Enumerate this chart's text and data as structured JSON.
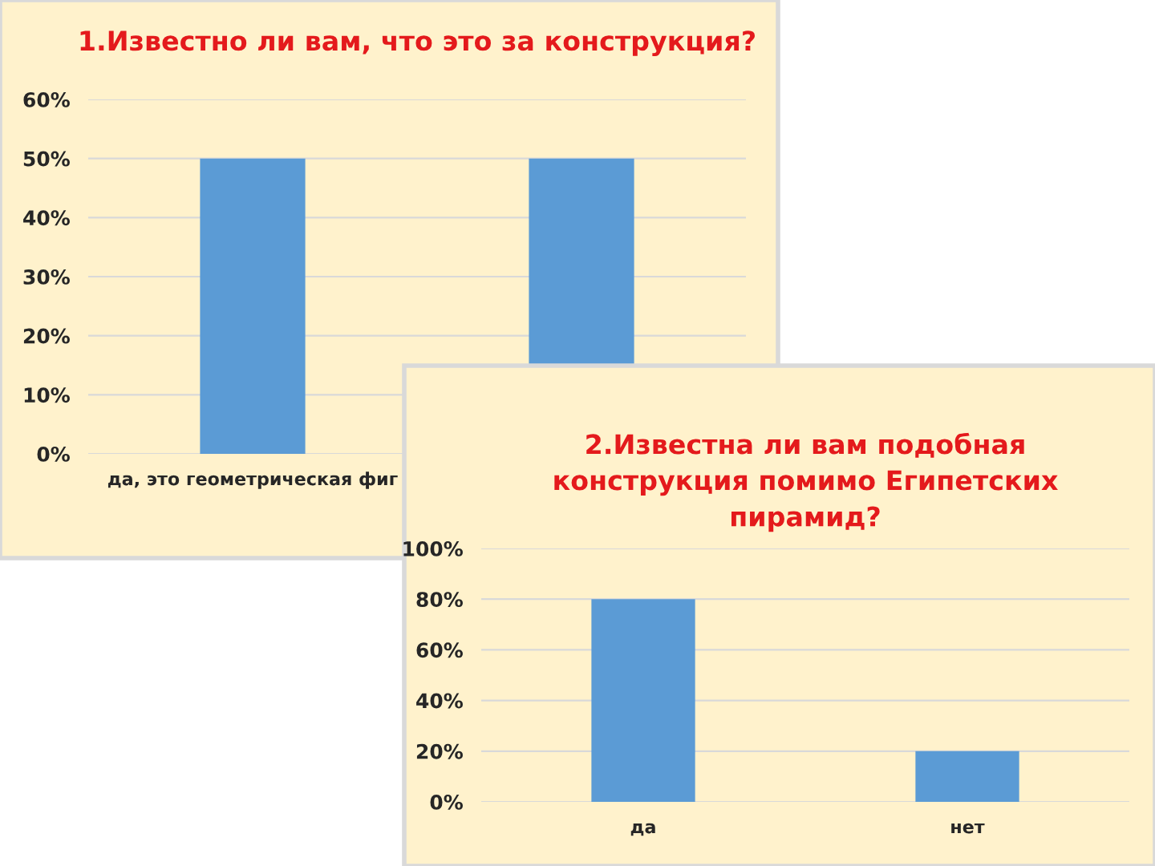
{
  "chart_data": [
    {
      "type": "bar",
      "title": "1.Известно ли вам, что это за конструкция?",
      "categories": [
        "да, это геометрическая фиг",
        null
      ],
      "values": [
        50,
        50
      ],
      "color": "#5b9bd5",
      "ylim": [
        0,
        60
      ],
      "yticks": [
        {
          "value": 0,
          "label": "0%"
        },
        {
          "value": 10,
          "label": "10%"
        },
        {
          "value": 20,
          "label": "20%"
        },
        {
          "value": 30,
          "label": "30%"
        },
        {
          "value": 40,
          "label": "40%"
        },
        {
          "value": 50,
          "label": "50%"
        },
        {
          "value": 60,
          "label": "60%"
        }
      ],
      "grid": "y"
    },
    {
      "type": "bar",
      "title": "2.Известна ли вам подобная\nконструкция помимо Египетских\nпирамид?",
      "categories": [
        "да",
        "нет"
      ],
      "values": [
        80,
        20
      ],
      "color": "#5b9bd5",
      "ylim": [
        0,
        100
      ],
      "yticks": [
        {
          "value": 0,
          "label": "0%"
        },
        {
          "value": 20,
          "label": "20%"
        },
        {
          "value": 40,
          "label": "40%"
        },
        {
          "value": 60,
          "label": "60%"
        },
        {
          "value": 80,
          "label": "80%"
        },
        {
          "value": 100,
          "label": "100%"
        }
      ],
      "grid": "y"
    }
  ]
}
